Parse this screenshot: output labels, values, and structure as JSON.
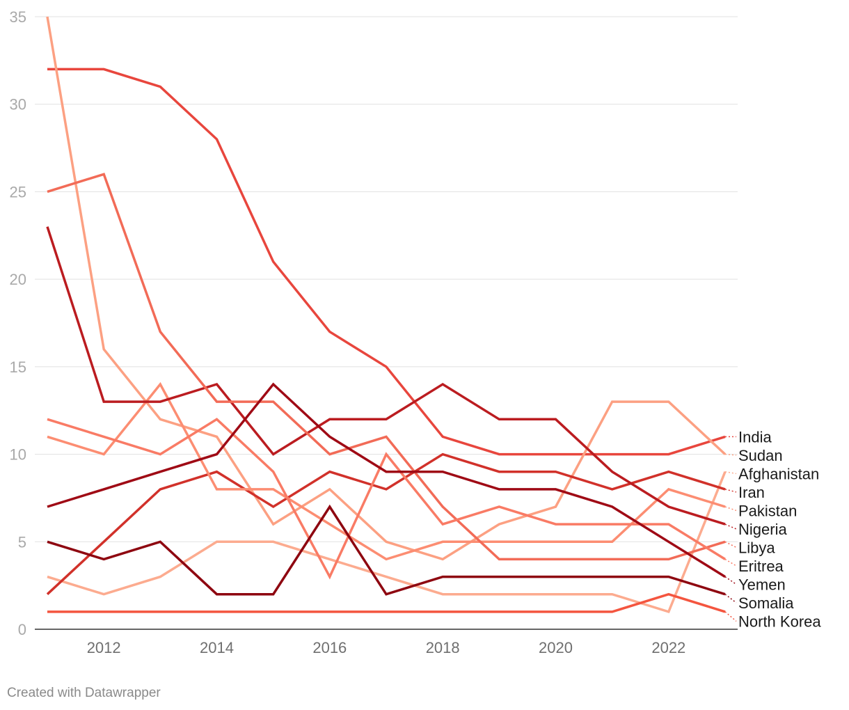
{
  "footer": {
    "credit": "Created with Datawrapper"
  },
  "chart_data": {
    "type": "line",
    "title": "",
    "xlabel": "",
    "ylabel": "",
    "x": [
      2011,
      2012,
      2013,
      2014,
      2015,
      2016,
      2017,
      2018,
      2019,
      2020,
      2021,
      2022,
      2023
    ],
    "xlim": [
      2011,
      2023
    ],
    "ylim": [
      0,
      35
    ],
    "yticks": [
      0,
      5,
      10,
      15,
      20,
      25,
      30,
      35
    ],
    "xticks": [
      2012,
      2014,
      2016,
      2018,
      2020,
      2022
    ],
    "grid": true,
    "legend": "direct labels at right end of lines",
    "series": [
      {
        "name": "India",
        "color": "#e8463d",
        "values": [
          32,
          32,
          31,
          28,
          21,
          17,
          15,
          11,
          10,
          10,
          10,
          10,
          11
        ]
      },
      {
        "name": "Sudan",
        "color": "#fca082",
        "values": [
          35,
          16,
          12,
          11,
          6,
          8,
          5,
          4,
          6,
          7,
          13,
          13,
          10
        ]
      },
      {
        "name": "Afghanistan",
        "color": "#fcab8f",
        "values": [
          3,
          2,
          3,
          5,
          5,
          4,
          3,
          2,
          2,
          2,
          2,
          1,
          9
        ]
      },
      {
        "name": "Iran",
        "color": "#d1312a",
        "values": [
          2,
          5,
          8,
          9,
          7,
          9,
          8,
          10,
          9,
          9,
          8,
          9,
          8
        ]
      },
      {
        "name": "Pakistan",
        "color": "#fc8d72",
        "values": [
          11,
          10,
          14,
          8,
          8,
          6,
          4,
          5,
          5,
          5,
          5,
          8,
          7
        ]
      },
      {
        "name": "Nigeria",
        "color": "#bb1c20",
        "values": [
          23,
          13,
          13,
          14,
          10,
          12,
          12,
          14,
          12,
          12,
          9,
          7,
          6
        ]
      },
      {
        "name": "Libya",
        "color": "#f26b57",
        "values": [
          25,
          26,
          17,
          13,
          13,
          10,
          11,
          7,
          4,
          4,
          4,
          4,
          5
        ]
      },
      {
        "name": "Eritrea",
        "color": "#f97b65",
        "values": [
          12,
          11,
          10,
          12,
          9,
          3,
          10,
          6,
          7,
          6,
          6,
          6,
          4
        ]
      },
      {
        "name": "Yemen",
        "color": "#9f0a15",
        "values": [
          7,
          8,
          9,
          10,
          14,
          11,
          9,
          9,
          8,
          8,
          7,
          5,
          3
        ]
      },
      {
        "name": "Somalia",
        "color": "#8e0610",
        "values": [
          5,
          4,
          5,
          2,
          2,
          7,
          2,
          3,
          3,
          3,
          3,
          3,
          2
        ]
      },
      {
        "name": "North Korea",
        "color": "#f4553f",
        "values": [
          1,
          1,
          1,
          1,
          1,
          1,
          1,
          1,
          1,
          1,
          1,
          2,
          1
        ]
      }
    ]
  }
}
